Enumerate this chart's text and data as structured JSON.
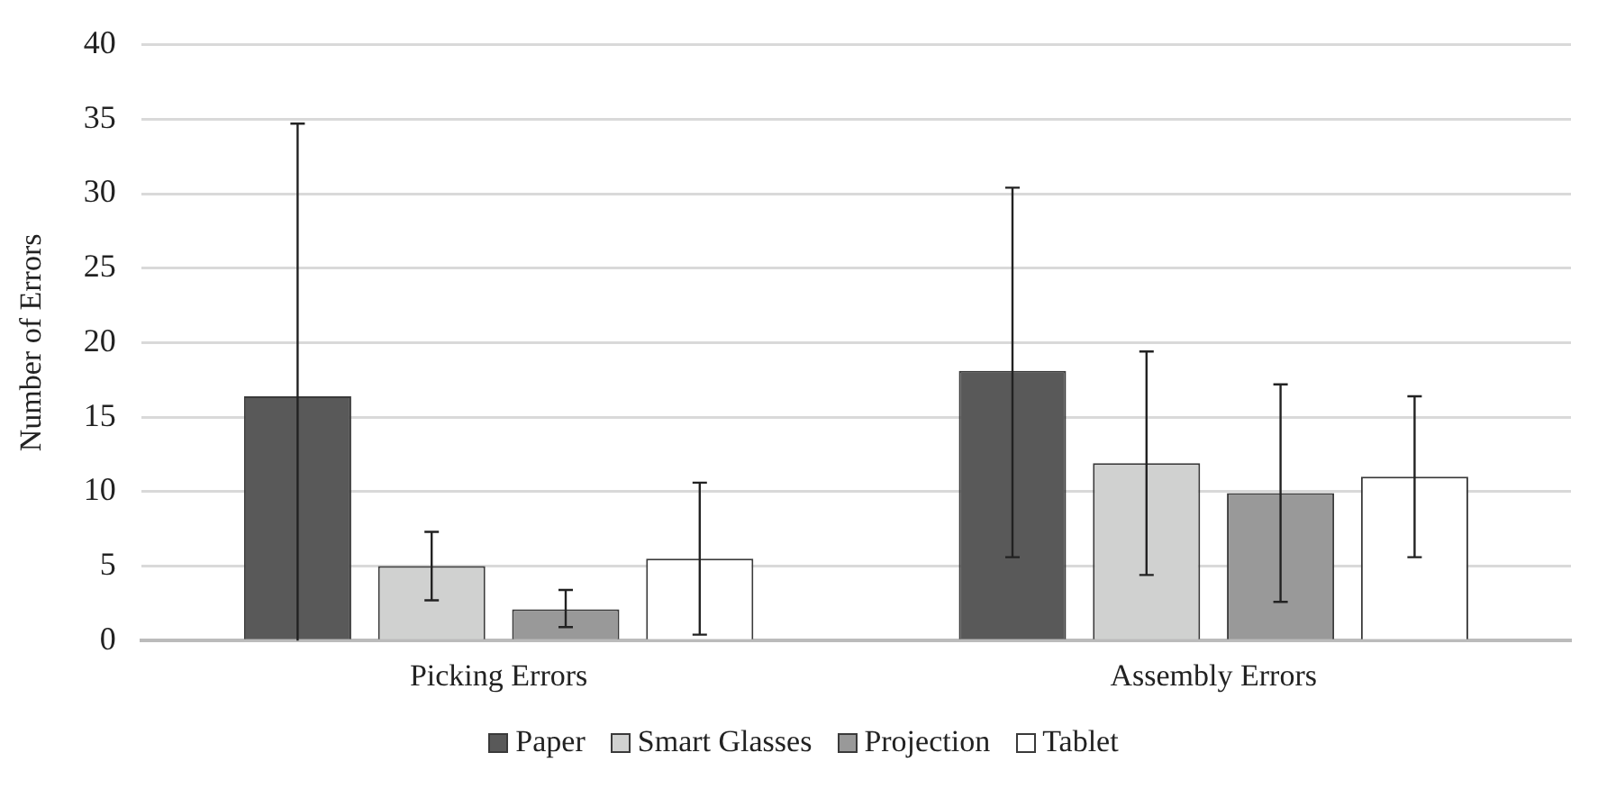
{
  "chart_data": {
    "type": "bar",
    "ylabel": "Number of Errors",
    "categories": [
      "Picking Errors",
      "Assembly Errors"
    ],
    "series": [
      {
        "name": "Paper",
        "color": "#595959",
        "values": [
          16.4,
          18.1
        ],
        "errors": [
          [
            0,
            34.7
          ],
          [
            5.6,
            30.4
          ]
        ]
      },
      {
        "name": "Smart Glasses",
        "color": "#d0d1d0",
        "values": [
          5.0,
          11.9
        ],
        "errors": [
          [
            2.7,
            7.3
          ],
          [
            4.4,
            19.4
          ]
        ]
      },
      {
        "name": "Projection",
        "color": "#999999",
        "values": [
          2.1,
          9.9
        ],
        "errors": [
          [
            0.9,
            3.4
          ],
          [
            2.6,
            17.2
          ]
        ]
      },
      {
        "name": "Tablet",
        "color": "#ffffff",
        "values": [
          5.5,
          11.0
        ],
        "errors": [
          [
            0.4,
            10.6
          ],
          [
            5.6,
            16.4
          ]
        ]
      }
    ],
    "ylim": [
      0,
      40
    ],
    "yticks": [
      0,
      5,
      10,
      15,
      20,
      25,
      30,
      35,
      40
    ],
    "grid": "y",
    "legend": "bottom"
  }
}
